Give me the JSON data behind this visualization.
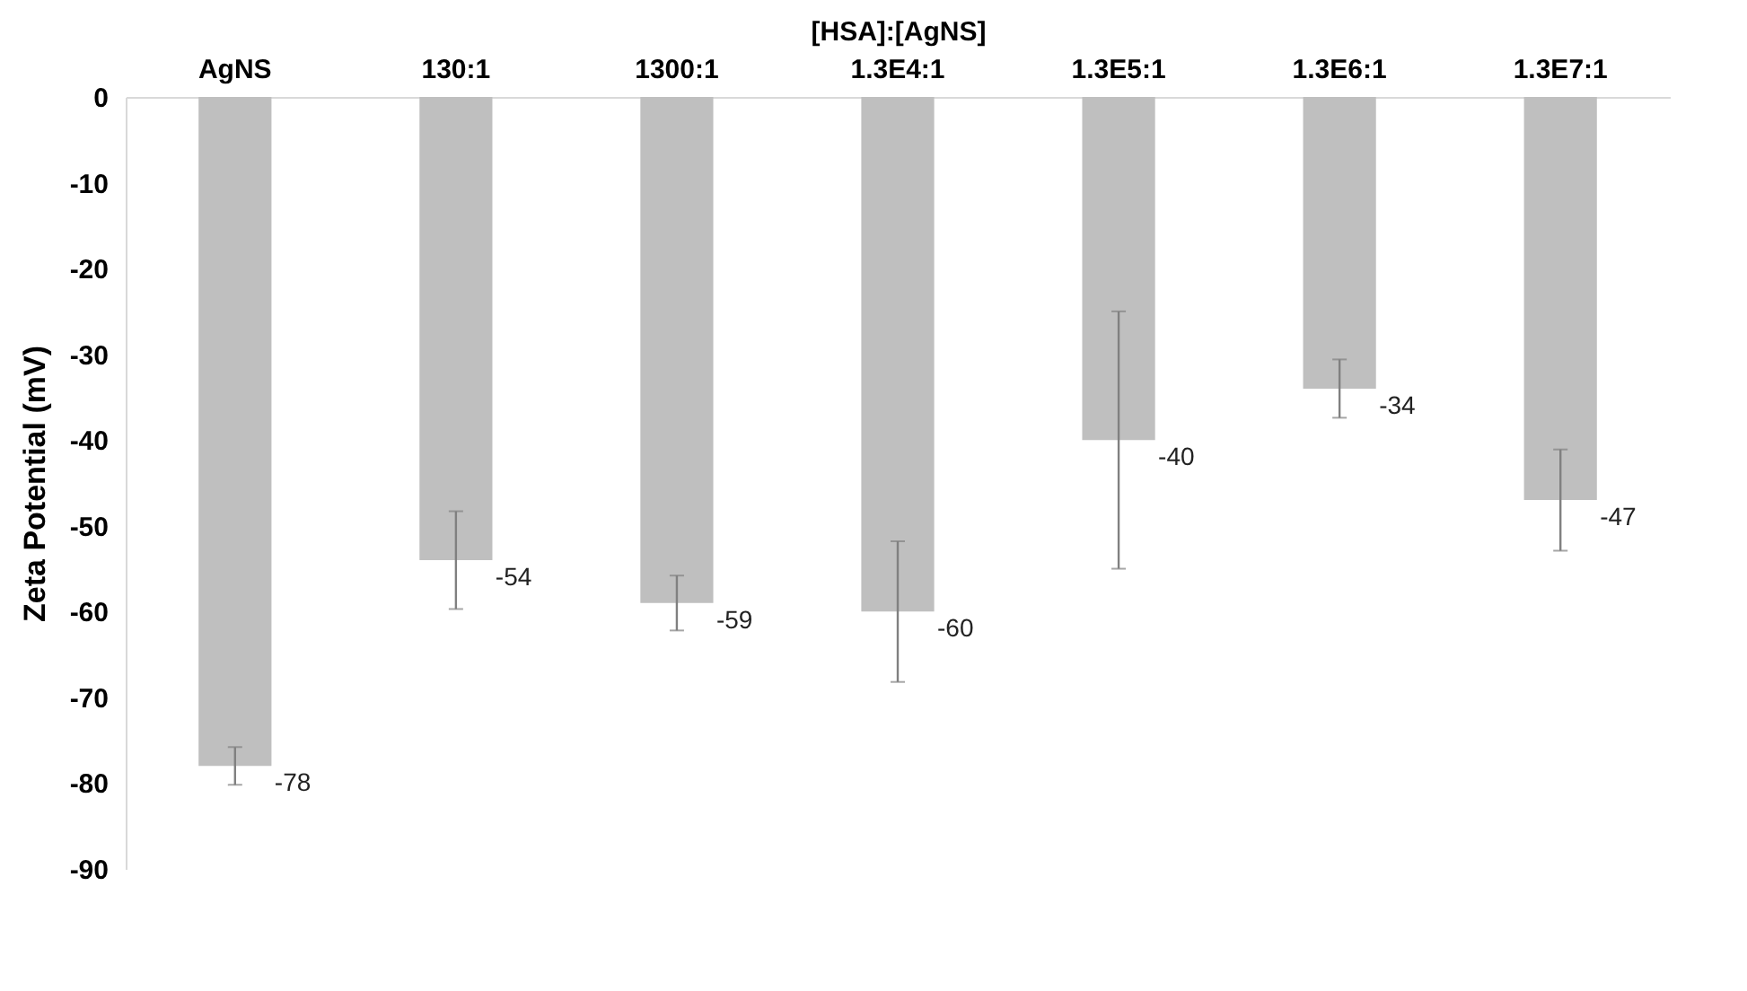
{
  "chart_data": {
    "type": "bar",
    "xlabel": "[HSA]:[AgNS]",
    "ylabel": "Zeta Potential (mV)",
    "categories": [
      "AgNS",
      "130:1",
      "1300:1",
      "1.3E4:1",
      "1.3E5:1",
      "1.3E6:1",
      "1.3E7:1"
    ],
    "values": [
      -78,
      -54,
      -59,
      -60,
      -40,
      -34,
      -47
    ],
    "errors": [
      2.2,
      5.7,
      3.2,
      8.2,
      15,
      3.4,
      5.9
    ],
    "color": "#bfbfbf",
    "ylim": [
      -90,
      0
    ],
    "yticks": [
      -90,
      -80,
      -70,
      -60,
      -50,
      -40,
      -30,
      -20,
      -10,
      0
    ],
    "grid": false,
    "data_labels": true
  }
}
